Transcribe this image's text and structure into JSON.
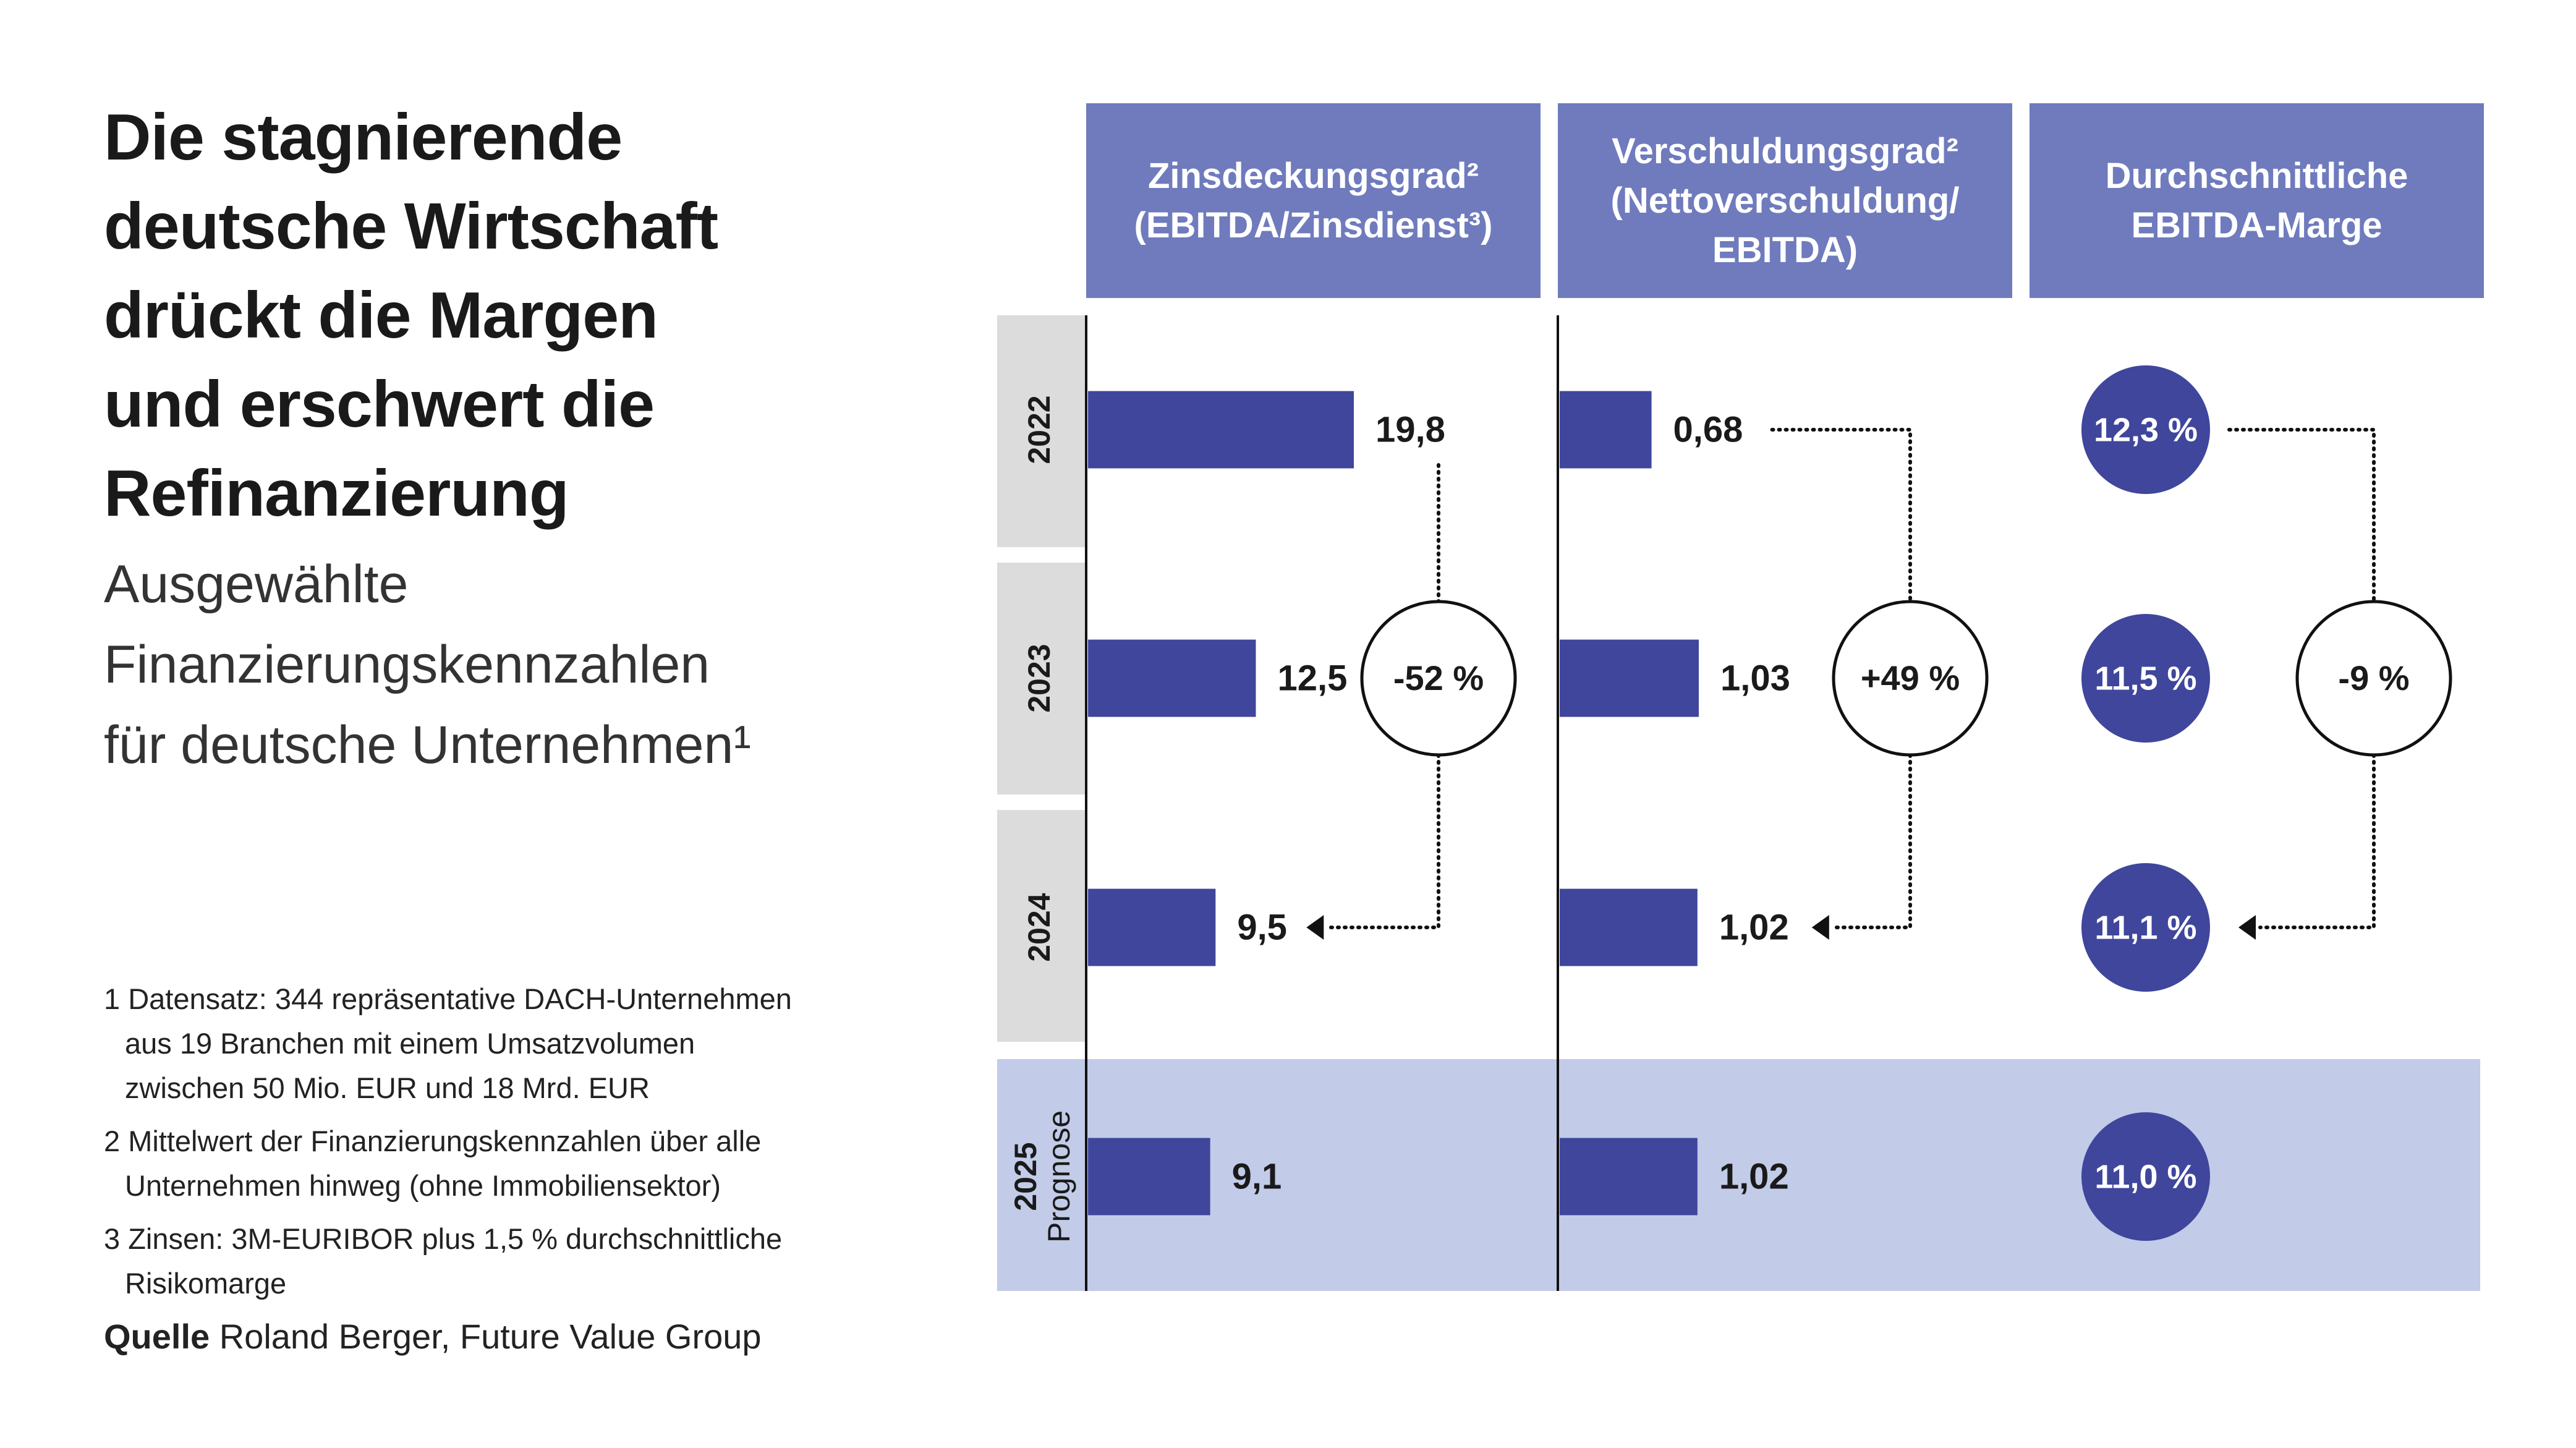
{
  "title_lines": [
    "Die stagnierende",
    "deutsche Wirtschaft",
    "drückt die Margen",
    "und erschwert die",
    "Refinanzierung"
  ],
  "subtitle_lines": [
    "Ausgewählte",
    "Finanzierungskennzahlen",
    "für deutsche Unternehmen¹"
  ],
  "footnotes": [
    [
      "1 Datensatz: 344 repräsentative DACH-Unternehmen",
      "aus 19 Branchen mit einem Umsatzvolumen",
      "zwischen 50 Mio. EUR und 18 Mrd. EUR"
    ],
    [
      "2 Mittelwert der Finanzierungskennzahlen über alle",
      "Unternehmen hinweg (ohne Immobiliensektor)"
    ],
    [
      "3 Zinsen: 3M-EURIBOR plus 1,5 % durchschnittliche",
      "Risikomarge"
    ]
  ],
  "source": {
    "label": "Quelle",
    "text": "Roland Berger, Future Value Group"
  },
  "colors": {
    "header": "#6f7bbd",
    "bar": "#3f469c",
    "year_bg": "#dcdcdc",
    "forecast_bg": "#c2cbe8",
    "text": "#1a1a1a"
  },
  "chart_data": {
    "type": "bar",
    "rows": [
      {
        "year": "2022",
        "sublabel": ""
      },
      {
        "year": "2023",
        "sublabel": ""
      },
      {
        "year": "2024",
        "sublabel": ""
      },
      {
        "year": "2025",
        "sublabel": "Prognose"
      }
    ],
    "columns": [
      {
        "header": [
          "Zinsdeckungsgrad²",
          "(EBITDA/Zinsdienst³)"
        ],
        "kind": "bar",
        "values": [
          19.8,
          12.5,
          9.5,
          9.1
        ],
        "labels": [
          "19,8",
          "12,5",
          "9,5",
          "9,1"
        ],
        "change": "-52 %",
        "scale_max": 19.8
      },
      {
        "header": [
          "Verschuldungsgrad²",
          "(Nettoverschuldung/",
          "EBITDA)"
        ],
        "kind": "bar",
        "values": [
          0.68,
          1.03,
          1.02,
          1.02
        ],
        "labels": [
          "0,68",
          "1,03",
          "1,02",
          "1,02"
        ],
        "change": "+49 %",
        "scale_max": 1.03
      },
      {
        "header": [
          "Durchschnittliche",
          "EBITDA-Marge"
        ],
        "kind": "circle",
        "values": [
          12.3,
          11.5,
          11.1,
          11.0
        ],
        "labels": [
          "12,3 %",
          "11,5 %",
          "11,1 %",
          "11,0 %"
        ],
        "change": "-9 %"
      }
    ]
  }
}
